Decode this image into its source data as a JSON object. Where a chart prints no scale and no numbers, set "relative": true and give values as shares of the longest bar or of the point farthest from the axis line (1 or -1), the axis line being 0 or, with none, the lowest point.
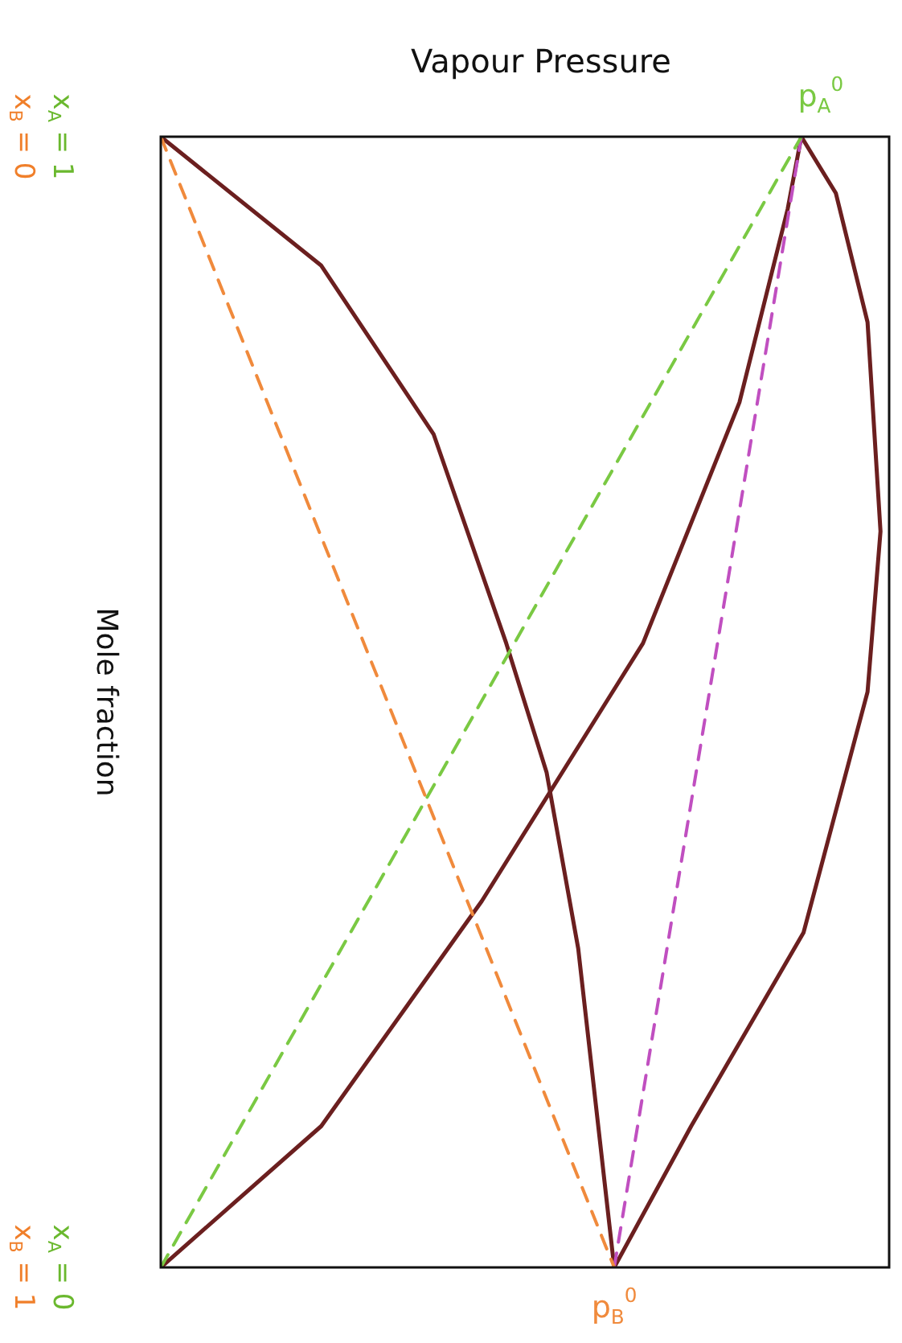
{
  "chart_data": {
    "type": "line",
    "title": "Vapour Pressure",
    "ylabel": "Mole fraction",
    "orientation": "horizontal",
    "relative": true,
    "legend": false,
    "ylim": [
      0,
      1
    ],
    "yticks": [
      {
        "value": 0,
        "label": "x$_{A}$ = 0"
      },
      {
        "value": 1,
        "label": "x$_{A}$ = 1"
      }
    ],
    "y2lim": [
      1,
      0
    ],
    "y2ticks": [
      {
        "value": 1,
        "label": "x$_{B}$ = 1"
      },
      {
        "value": 0,
        "label": "x$_{B}$ = 0"
      }
    ],
    "annotations": [
      {
        "text": "p$_{A}$$^{0}$",
        "x": 0.89,
        "y": 1
      },
      {
        "text": "p$_{B}$$^{0}$",
        "x": 0.63,
        "y": 0
      }
    ],
    "series": [
      {
        "color": "#f08a3c",
        "line_style": "dashed",
        "x": [
          1,
          0
        ],
        "values": [
          0,
          0.63
        ]
      },
      {
        "color": "#7ac943",
        "line_style": "dashed",
        "x": [
          0,
          1
        ],
        "values": [
          0,
          0.89
        ]
      },
      {
        "color": "#c04fc0",
        "line_style": "dashed",
        "x": [
          0,
          1
        ],
        "values": [
          0.63,
          0.89
        ]
      },
      {
        "color": "#6b1f1f",
        "line_style": "solid",
        "x": [
          1,
          0.886,
          0.737,
          0.552,
          0.438,
          0.282,
          0
        ],
        "values": [
          0,
          0.223,
          0.379,
          0.48,
          0.536,
          0.58,
          0.63
        ]
      },
      {
        "color": "#6b1f1f",
        "line_style": "solid",
        "x": [
          0,
          0.125,
          0.324,
          0.552,
          0.765,
          0.936,
          1
        ],
        "values": [
          0,
          0.223,
          0.446,
          0.67,
          0.804,
          0.871,
          0.89
        ]
      },
      {
        "color": "#6b1f1f",
        "line_style": "solid",
        "x": [
          0,
          0.125,
          0.296,
          0.509,
          0.651,
          0.836,
          0.95,
          1
        ],
        "values": [
          0.63,
          0.737,
          0.893,
          0.982,
          1,
          0.982,
          0.938,
          0.89
        ]
      }
    ]
  }
}
